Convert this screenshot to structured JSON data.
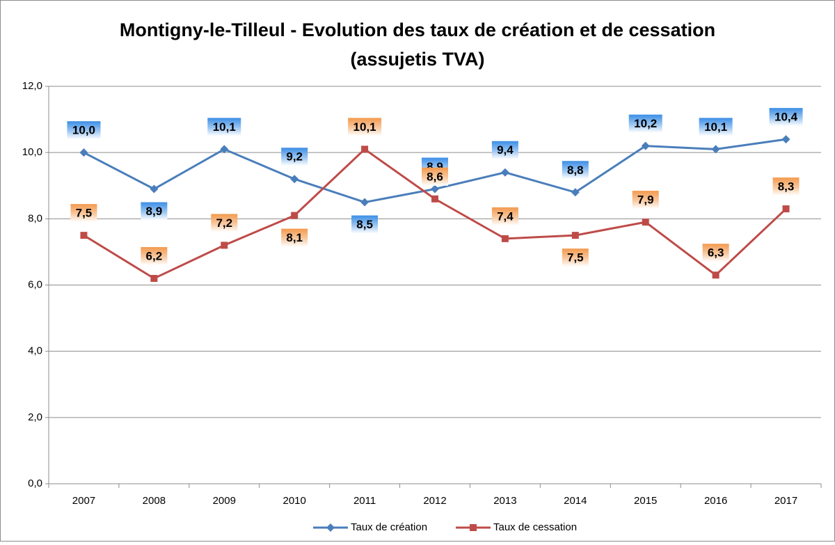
{
  "chart_data": {
    "type": "line",
    "title": [
      "Montigny-le-Tilleul - Evolution des taux de création et de cessation",
      "(assujetis TVA)"
    ],
    "categories": [
      "2007",
      "2008",
      "2009",
      "2010",
      "2011",
      "2012",
      "2013",
      "2014",
      "2015",
      "2016",
      "2017"
    ],
    "series": [
      {
        "name": "Taux de création",
        "color": "#4a7ebb",
        "marker": "diamond",
        "values": [
          10.0,
          8.9,
          10.1,
          9.2,
          8.5,
          8.9,
          9.4,
          8.8,
          10.2,
          10.1,
          10.4
        ],
        "value_labels": [
          "10,0",
          "8,9",
          "10,1",
          "9,2",
          "8,5",
          "8,9",
          "9,4",
          "8,8",
          "10,2",
          "10,1",
          "10,4"
        ]
      },
      {
        "name": "Taux de cessation",
        "color": "#be4b48",
        "marker": "square",
        "values": [
          7.5,
          6.2,
          7.2,
          8.1,
          10.1,
          8.6,
          7.4,
          7.5,
          7.9,
          6.3,
          8.3
        ],
        "value_labels": [
          "7,5",
          "6,2",
          "7,2",
          "8,1",
          "10,1",
          "8,6",
          "7,4",
          "7,5",
          "7,9",
          "6,3",
          "8,3"
        ]
      }
    ],
    "ylim": [
      0,
      12
    ],
    "yticks": [
      {
        "value": 0,
        "label": "0,0"
      },
      {
        "value": 2,
        "label": "2,0"
      },
      {
        "value": 4,
        "label": "4,0"
      },
      {
        "value": 6,
        "label": "6,0"
      },
      {
        "value": 8,
        "label": "8,0"
      },
      {
        "value": 10,
        "label": "10,0"
      },
      {
        "value": 12,
        "label": "12,0"
      }
    ],
    "grid": true,
    "legend": "bottom"
  }
}
